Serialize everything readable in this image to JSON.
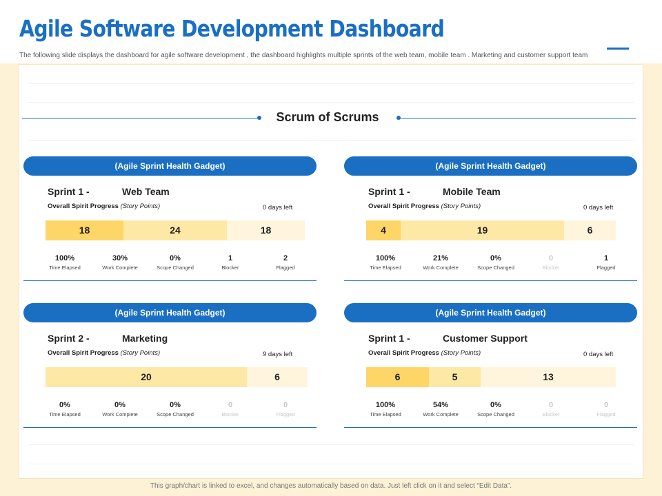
{
  "header": {
    "title": "Agile Software Development Dashboard",
    "subtitle": "The following slide displays the dashboard for agile software development , the dashboard highlights multiple sprints of the web team, mobile team . Marketing and customer support team"
  },
  "section": {
    "title": "Scrum of Scrums"
  },
  "gadgets": [
    {
      "header": "(Agile Sprint Health Gadget)",
      "sprint": "Sprint 1 -",
      "team": "Web Team",
      "progress_label": "Overall Spirit Progress",
      "progress_unit": "(Story Points)",
      "days_left": "0 days left",
      "segments": [
        {
          "label": "18",
          "value": 18
        },
        {
          "label": "24",
          "value": 24
        },
        {
          "label": "18",
          "value": 18
        }
      ],
      "stats": [
        {
          "value": "100%",
          "label": "Time Elapsed"
        },
        {
          "value": "30%",
          "label": "Work Complete"
        },
        {
          "value": "0%",
          "label": "Scope Changed"
        },
        {
          "value": "1",
          "label": "Blocker"
        },
        {
          "value": "2",
          "label": "Flagged"
        }
      ]
    },
    {
      "header": "(Agile Sprint Health Gadget)",
      "sprint": "Sprint 1 -",
      "team": "Mobile Team",
      "progress_label": "Overall Spirit Progress",
      "progress_unit": "(Story Points)",
      "days_left": "0 days left",
      "segments": [
        {
          "label": "4",
          "value": 4
        },
        {
          "label": "19",
          "value": 19
        },
        {
          "label": "6",
          "value": 6
        }
      ],
      "stats": [
        {
          "value": "100%",
          "label": "Time Elapsed"
        },
        {
          "value": "21%",
          "label": "Work Complete"
        },
        {
          "value": "0%",
          "label": "Scope Changed"
        },
        {
          "value": "0",
          "label": "Blocker"
        },
        {
          "value": "1",
          "label": "Flagged"
        }
      ]
    },
    {
      "header": "(Agile Sprint Health Gadget)",
      "sprint": "Sprint 2 -",
      "team": "Marketing",
      "progress_label": "Overall Spirit Progress",
      "progress_unit": "(Story Points)",
      "days_left": "9 days left",
      "segments": [
        {
          "label": "20",
          "value": 20
        },
        {
          "label": "6",
          "value": 6
        }
      ],
      "stats": [
        {
          "value": "0%",
          "label": "Time Elapsed"
        },
        {
          "value": "0%",
          "label": "Work Complete"
        },
        {
          "value": "0%",
          "label": "Scope Changed"
        },
        {
          "value": "0",
          "label": "Blocker"
        },
        {
          "value": "0",
          "label": "Flagged"
        }
      ]
    },
    {
      "header": "(Agile Sprint Health Gadget)",
      "sprint": "Sprint 1 -",
      "team": "Customer Support",
      "progress_label": "Overall Spirit Progress",
      "progress_unit": "(Story Points)",
      "days_left": "0 days left",
      "segments": [
        {
          "label": "6",
          "value": 6
        },
        {
          "label": "5",
          "value": 5
        },
        {
          "label": "13",
          "value": 13
        }
      ],
      "stats": [
        {
          "value": "100%",
          "label": "Time Elapsed"
        },
        {
          "value": "54%",
          "label": "Work Complete"
        },
        {
          "value": "0%",
          "label": "Scope Changed"
        },
        {
          "value": "0",
          "label": "Blocker"
        },
        {
          "value": "0",
          "label": "Flagged"
        }
      ]
    }
  ],
  "footer": {
    "note": "This graph/chart is linked to excel, and changes automatically based on data. Just left click on it and select “Edit Data”."
  }
}
